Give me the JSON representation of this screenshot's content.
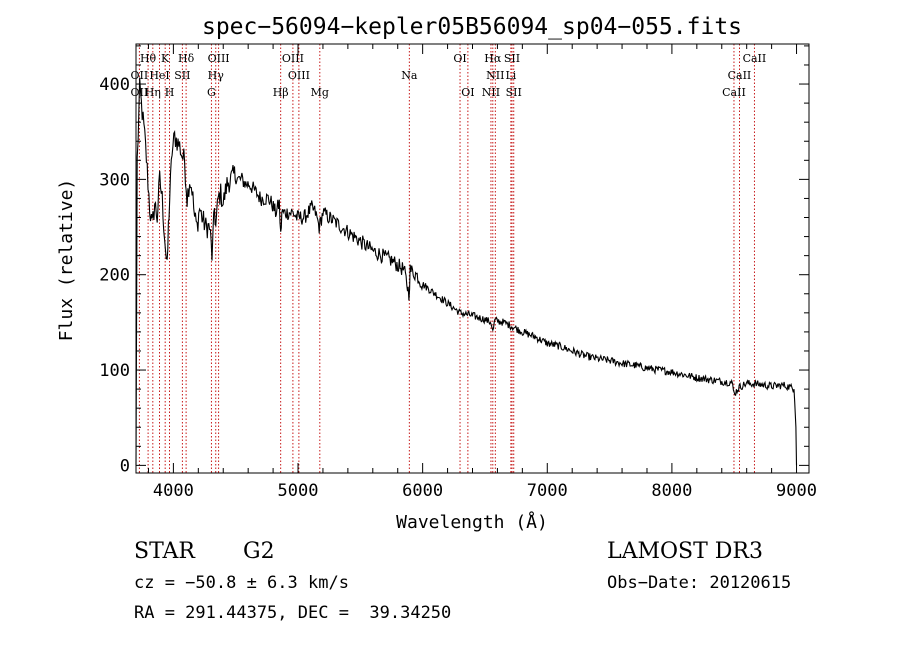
{
  "chart_data": {
    "type": "line",
    "title": "spec−56094−kepler05B56094_sp04−055.fits",
    "xlabel": "Wavelength (Å)",
    "ylabel": "Flux (relative)",
    "xlim": [
      3700,
      9100
    ],
    "ylim": [
      -8,
      442
    ],
    "x_ticks": [
      4000,
      5000,
      6000,
      7000,
      8000,
      9000
    ],
    "y_ticks": [
      0,
      100,
      200,
      300,
      400
    ],
    "series": [
      {
        "name": "spectrum",
        "x": [
          3700,
          3710,
          3730,
          3750,
          3770,
          3790,
          3810,
          3830,
          3850,
          3870,
          3890,
          3910,
          3930,
          3950,
          3960,
          3970,
          3990,
          4010,
          4030,
          4050,
          4070,
          4090,
          4110,
          4130,
          4150,
          4170,
          4190,
          4210,
          4230,
          4260,
          4290,
          4310,
          4330,
          4340,
          4360,
          4380,
          4400,
          4430,
          4460,
          4490,
          4520,
          4550,
          4580,
          4610,
          4640,
          4670,
          4700,
          4730,
          4760,
          4790,
          4820,
          4850,
          4861,
          4870,
          4900,
          4930,
          4960,
          4990,
          5020,
          5050,
          5080,
          5110,
          5140,
          5170,
          5200,
          5250,
          5300,
          5350,
          5400,
          5450,
          5500,
          5550,
          5600,
          5650,
          5700,
          5750,
          5800,
          5850,
          5890,
          5900,
          5950,
          6000,
          6100,
          6200,
          6300,
          6400,
          6500,
          6550,
          6563,
          6580,
          6650,
          6700,
          6800,
          6900,
          7000,
          7100,
          7200,
          7300,
          7400,
          7500,
          7600,
          7700,
          7800,
          7900,
          8000,
          8100,
          8200,
          8300,
          8400,
          8480,
          8500,
          8540,
          8600,
          8700,
          8800,
          8900,
          8950,
          8980,
          8995,
          9000
        ],
        "values": [
          0,
          320,
          395,
          370,
          345,
          310,
          270,
          250,
          275,
          260,
          300,
          280,
          240,
          205,
          250,
          280,
          330,
          345,
          340,
          335,
          325,
          320,
          280,
          300,
          290,
          260,
          250,
          270,
          260,
          250,
          250,
          220,
          270,
          250,
          280,
          285,
          275,
          295,
          300,
          305,
          300,
          300,
          295,
          295,
          290,
          285,
          280,
          280,
          280,
          275,
          265,
          275,
          240,
          265,
          265,
          265,
          265,
          260,
          260,
          260,
          265,
          270,
          265,
          250,
          265,
          260,
          255,
          250,
          245,
          240,
          235,
          230,
          225,
          222,
          218,
          215,
          210,
          205,
          180,
          205,
          200,
          190,
          180,
          170,
          160,
          157,
          153,
          150,
          140,
          152,
          150,
          147,
          140,
          135,
          128,
          125,
          120,
          115,
          112,
          110,
          107,
          105,
          102,
          100,
          98,
          95,
          92,
          90,
          88,
          87,
          75,
          82,
          86,
          85,
          83,
          84,
          82,
          80,
          40,
          0
        ]
      }
    ],
    "lines": [
      {
        "label": "Hθ",
        "wl": 3797,
        "row": 0
      },
      {
        "label": "K",
        "wl": 3934,
        "row": 0
      },
      {
        "label": "Hδ",
        "wl": 4102,
        "row": 0
      },
      {
        "label": "OIII",
        "wl": 4363,
        "row": 0
      },
      {
        "label": "OIII",
        "wl": 4959,
        "row": 0
      },
      {
        "label": "OI",
        "wl": 6300,
        "row": 0
      },
      {
        "label": "Hα",
        "wl": 6563,
        "row": 0
      },
      {
        "label": "SII",
        "wl": 6717,
        "row": 0
      },
      {
        "label": "CaII",
        "wl": 8662,
        "row": 0
      },
      {
        "label": "OII",
        "wl": 3727,
        "row": 1
      },
      {
        "label": "HeI",
        "wl": 3889,
        "row": 1
      },
      {
        "label": "SII",
        "wl": 4072,
        "row": 1
      },
      {
        "label": "Hγ",
        "wl": 4340,
        "row": 1
      },
      {
        "label": "OIII",
        "wl": 5007,
        "row": 1
      },
      {
        "label": "Na",
        "wl": 5893,
        "row": 1
      },
      {
        "label": "NII",
        "wl": 6583,
        "row": 1
      },
      {
        "label": "Li",
        "wl": 6708,
        "row": 1
      },
      {
        "label": "CaII",
        "wl": 8542,
        "row": 1
      },
      {
        "label": "OII",
        "wl": 3727,
        "row": 2
      },
      {
        "label": "Hη",
        "wl": 3835,
        "row": 2
      },
      {
        "label": "H",
        "wl": 3969,
        "row": 2
      },
      {
        "label": "G",
        "wl": 4305,
        "row": 2
      },
      {
        "label": "Hβ",
        "wl": 4861,
        "row": 2
      },
      {
        "label": "Mg",
        "wl": 5175,
        "row": 2
      },
      {
        "label": "OI",
        "wl": 6363,
        "row": 2
      },
      {
        "label": "NII",
        "wl": 6548,
        "row": 2
      },
      {
        "label": "SII",
        "wl": 6731,
        "row": 2
      },
      {
        "label": "CaII",
        "wl": 8498,
        "row": 2
      }
    ]
  },
  "info": {
    "class_label": "STAR",
    "subclass": "G2",
    "survey": "LAMOST DR3",
    "cz": "cz = −50.8 ± 6.3 km/s",
    "obs_date": "Obs−Date: 20120615",
    "coords": "RA = 291.44375, DEC =  39.34250"
  }
}
